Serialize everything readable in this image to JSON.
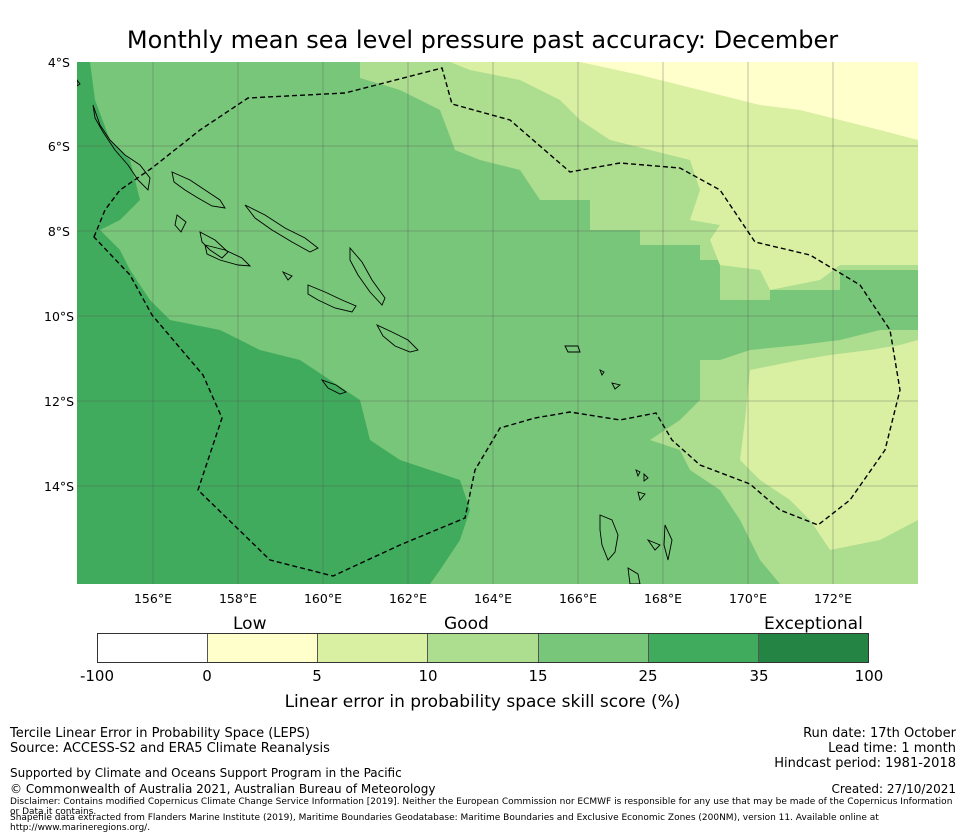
{
  "title": "Monthly mean sea level pressure past accuracy: December",
  "map": {
    "lat_labels": [
      "4°S",
      "6°S",
      "8°S",
      "10°S",
      "12°S",
      "14°S"
    ],
    "lon_labels": [
      "156°E",
      "158°E",
      "160°E",
      "162°E",
      "164°E",
      "166°E",
      "168°E",
      "170°E",
      "172°E"
    ],
    "lat_range": [
      -16.3,
      -4.0
    ],
    "lon_range": [
      154.2,
      174.0
    ],
    "eez_boundary_note": "dashed line",
    "skill_colors": {
      "0-5": "#ffffcc",
      "5-10": "#d9f0a3",
      "10-15": "#addd8e",
      "15-25": "#78c679",
      "25-35": "#41ab5d",
      "35-100": "#238443"
    }
  },
  "colorbar": {
    "category_labels": {
      "low": "Low",
      "good": "Good",
      "exceptional": "Exceptional"
    },
    "ticks": [
      "-100",
      "0",
      "5",
      "10",
      "15",
      "25",
      "35",
      "100"
    ],
    "segment_colors": [
      "#ffffff",
      "#ffffcc",
      "#d9f0a3",
      "#addd8e",
      "#78c679",
      "#41ab5d",
      "#238443"
    ],
    "axis_label": "Linear error in probability space skill score (%)"
  },
  "footer": {
    "left_line1": "Tercile Linear Error in Probability Space (LEPS)",
    "left_line2": "Source: ACCESS-S2 and ERA5 Climate Reanalysis",
    "support": "Supported by Climate and Oceans Support Program in the Pacific",
    "copyright": "© Commonwealth of Australia 2021, Australian Bureau of Meteorology",
    "disclaimer": "Disclaimer: Contains modified Copernicus Climate Change Service Information [2019]. Neither the European Commission nor ECMWF is responsible for any use that may be made of the Copernicus Information or Data it contains.",
    "shapefile": "Shapefile data extracted from Flanders Marine Institute (2019), Maritime Boundaries Geodatabase: Maritime Boundaries and Exclusive Economic Zones (200NM), version 11. Available online at http://www.marineregions.org/.",
    "run_date": "Run date: 17th October",
    "lead_time": "Lead time: 1 month",
    "hindcast": "Hindcast period: 1981-2018",
    "created": "Created: 27/10/2021"
  }
}
